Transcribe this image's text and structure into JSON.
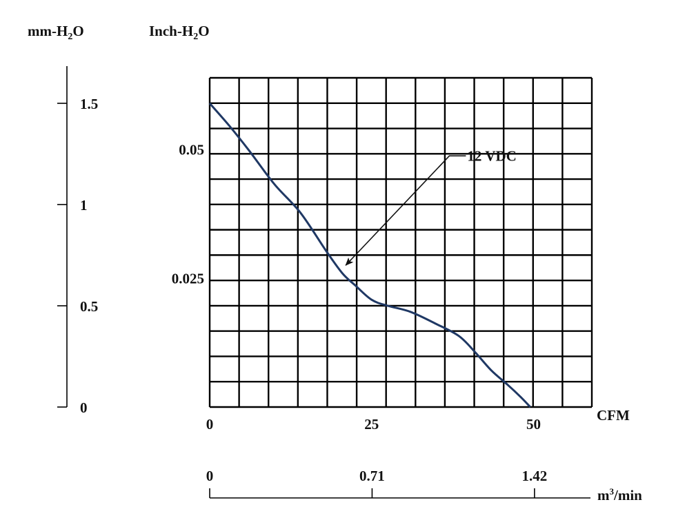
{
  "chart_data": {
    "type": "line",
    "axes": {
      "left_mm": {
        "label": {
          "main": "mm-H",
          "sub": "2",
          "tail": "O"
        },
        "ticks": [
          {
            "value": 0,
            "label": "0"
          },
          {
            "value": 0.5,
            "label": "0.5"
          },
          {
            "value": 1,
            "label": "1"
          },
          {
            "value": 1.5,
            "label": "1.5"
          }
        ]
      },
      "left_inch": {
        "label": {
          "main": "Inch-H",
          "sub": "2",
          "tail": "O"
        },
        "ticks": [
          {
            "value": 0.025,
            "label": "0.025"
          },
          {
            "value": 0.05,
            "label": "0.05"
          }
        ]
      },
      "x_cfm": {
        "label": "CFM",
        "ticks": [
          {
            "value": 0,
            "label": "0"
          },
          {
            "value": 25,
            "label": "25"
          },
          {
            "value": 50,
            "label": "50"
          }
        ]
      },
      "x_m3": {
        "label": {
          "main": "m",
          "sup": "3",
          "tail": "/min"
        },
        "ticks": [
          {
            "value": 0,
            "label": "0"
          },
          {
            "value": 0.71,
            "label": "0.71"
          },
          {
            "value": 1.42,
            "label": "1.42"
          }
        ]
      }
    },
    "xlim": [
      0,
      59
    ],
    "ylim_mm": [
      0,
      1.62
    ],
    "grid": true,
    "series": [
      {
        "name": "12 VDC",
        "color": "#1f3864",
        "x_cfm": [
          0,
          3,
          6,
          10,
          14,
          18,
          20.5,
          22.5,
          25,
          27.5,
          31,
          35,
          38.5,
          41,
          43.5,
          46,
          48,
          49.5
        ],
        "y_mm": [
          1.5,
          1.39,
          1.27,
          1.1,
          0.96,
          0.77,
          0.66,
          0.6,
          0.53,
          0.5,
          0.47,
          0.41,
          0.35,
          0.27,
          0.18,
          0.11,
          0.05,
          0.0
        ]
      }
    ],
    "annotation": {
      "text": "12 VDC",
      "points_to": {
        "x": 21,
        "y": 0.7
      },
      "label_at": {
        "x": 37,
        "y": 1.22
      }
    }
  }
}
